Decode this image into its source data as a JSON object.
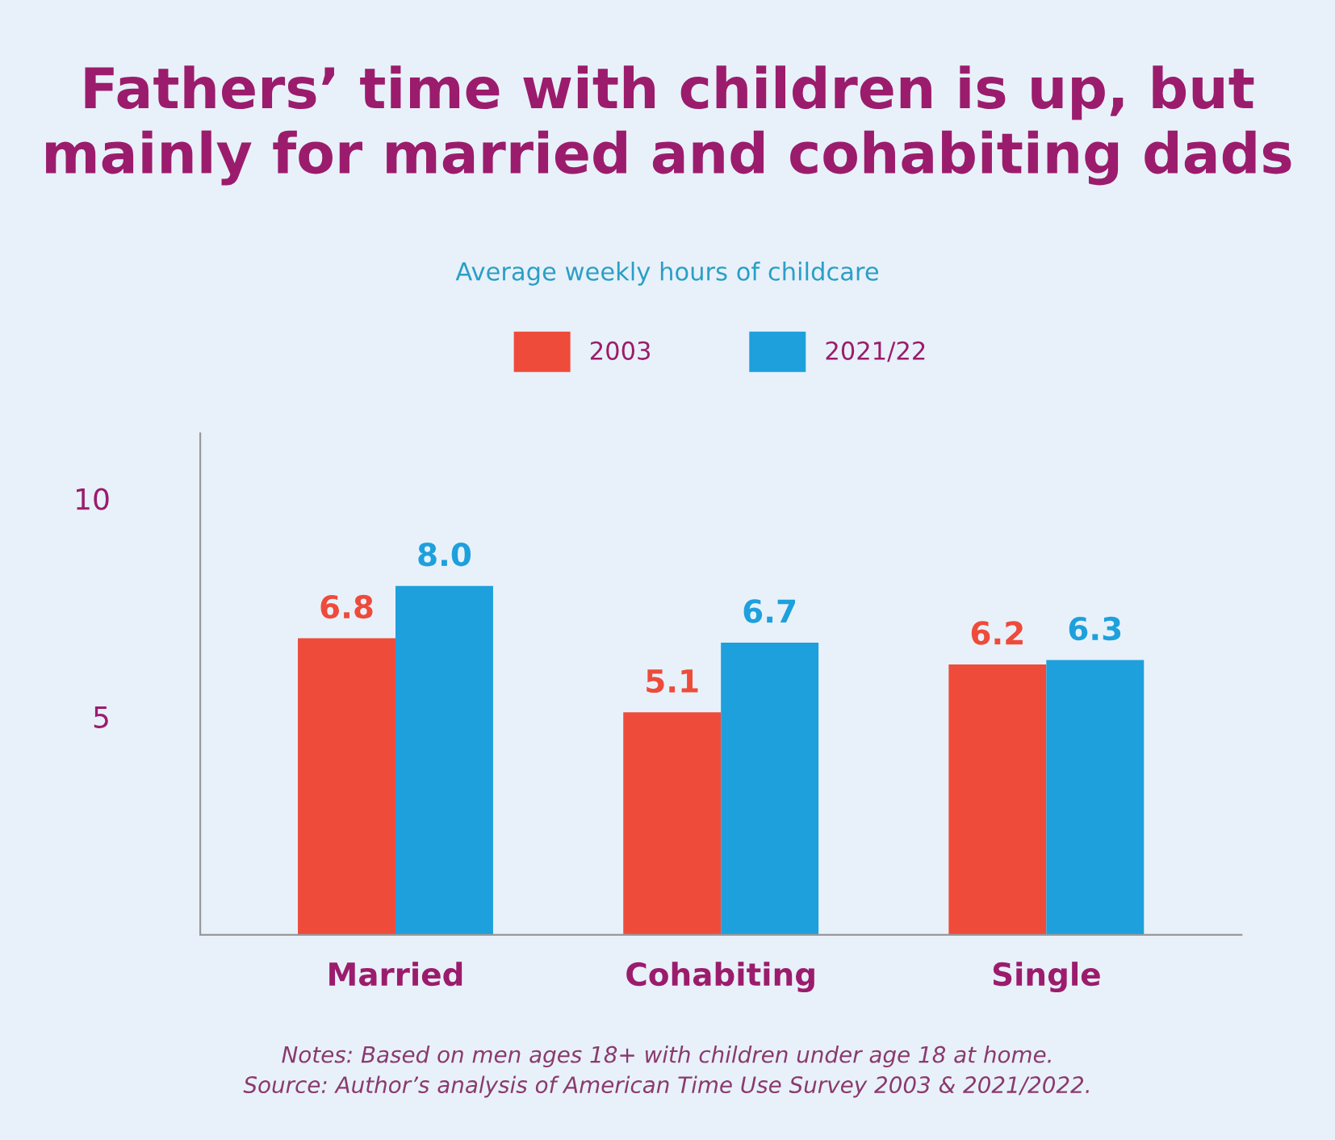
{
  "chart_data": {
    "type": "bar",
    "title": "Fathers’ time with children is up, but\nmainly for married and cohabiting dads",
    "subtitle": "Average weekly hours of childcare",
    "categories": [
      "Married",
      "Cohabiting",
      "Single"
    ],
    "series": [
      {
        "name": "2003",
        "color": "#ee4b3b",
        "values": [
          6.8,
          5.1,
          6.2
        ],
        "value_labels": [
          "6.8",
          "5.1",
          "6.2"
        ]
      },
      {
        "name": "2021/22",
        "color": "#1ea0dc",
        "values": [
          8.0,
          6.7,
          6.3
        ],
        "value_labels": [
          "8.0",
          "6.7",
          "6.3"
        ]
      }
    ],
    "ylim": [
      0,
      11.5
    ],
    "yticks": [
      5,
      10
    ],
    "grid": false,
    "legend": "top",
    "annotations": [
      "Notes: Based on men ages 18+ with children under age 18 at home.\nSource: Author’s analysis of American Time Use Survey 2003 & 2021/2022."
    ]
  }
}
